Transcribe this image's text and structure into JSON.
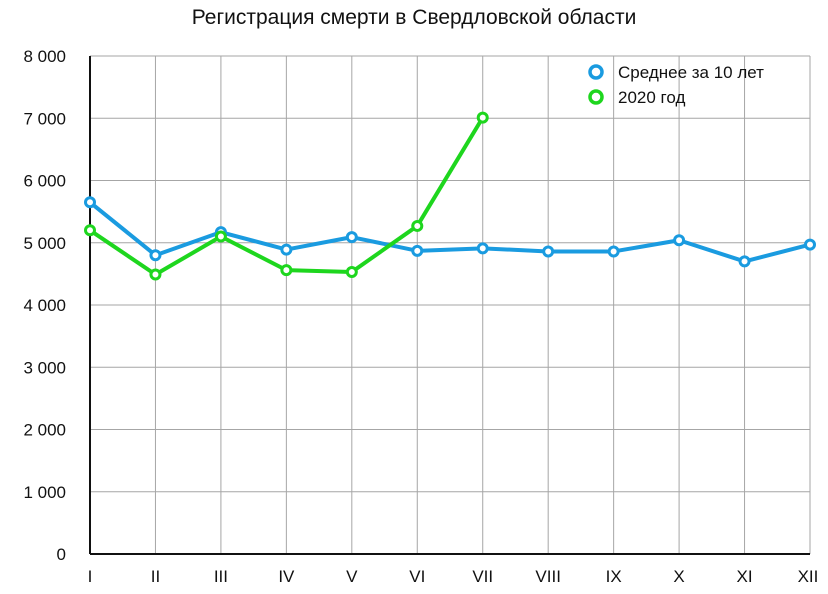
{
  "chart_data": {
    "type": "line",
    "title": "Регистрация смерти в Свердловской области",
    "xlabel": "",
    "ylabel": "",
    "categories": [
      "I",
      "II",
      "III",
      "IV",
      "V",
      "VI",
      "VII",
      "VIII",
      "IX",
      "X",
      "XI",
      "XII"
    ],
    "ylim": [
      0,
      8000
    ],
    "yticks": [
      0,
      1000,
      2000,
      3000,
      4000,
      5000,
      6000,
      7000,
      8000
    ],
    "ytick_labels": [
      "0",
      "1 000",
      "2 000",
      "3 000",
      "4 000",
      "5 000",
      "6 000",
      "7 000",
      "8 000"
    ],
    "grid": true,
    "legend_position": "top-right",
    "series": [
      {
        "name": "Среднее за 10 лет",
        "color": "#1a9be0",
        "values": [
          5650,
          4800,
          5170,
          4890,
          5090,
          4870,
          4910,
          4860,
          4860,
          5040,
          4700,
          4970
        ]
      },
      {
        "name": "2020 год",
        "color": "#1ed61e",
        "values": [
          5200,
          4490,
          5100,
          4560,
          4530,
          5270,
          7010,
          null,
          null,
          null,
          null,
          null
        ]
      }
    ]
  }
}
